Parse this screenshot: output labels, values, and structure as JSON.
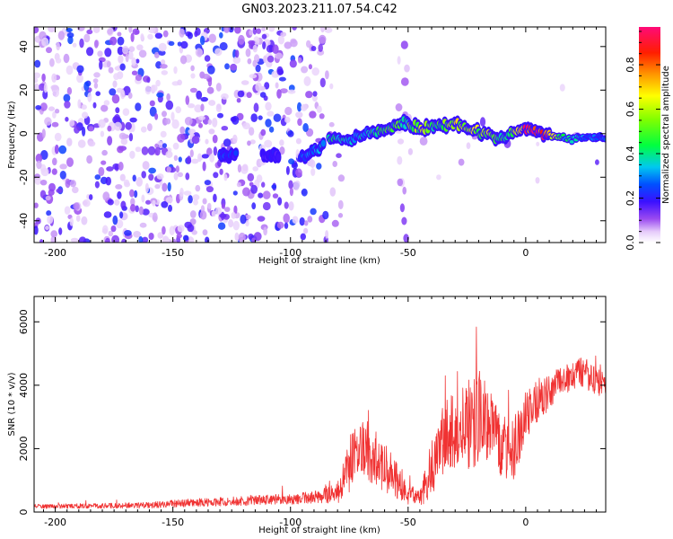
{
  "title": "GN03.2023.211.07.54.C42",
  "chart_data": [
    {
      "type": "heatmap",
      "xlabel": "Height of straight line (km)",
      "ylabel": "Frequency (Hz)",
      "xlim": [
        -209,
        34
      ],
      "ylim": [
        -50,
        49
      ],
      "xticks": [
        -200,
        -150,
        -100,
        -50,
        0
      ],
      "yticks": [
        -40,
        -20,
        0,
        20,
        40
      ],
      "colorbar": {
        "label": "Normalized spectral amplitude",
        "range": [
          0,
          0.97
        ],
        "ticks": [
          0.0,
          0.2,
          0.4,
          0.6,
          0.8
        ]
      },
      "ridge": [
        {
          "x": -128,
          "y": -10,
          "amp": 0.25
        },
        {
          "x": -100,
          "y": -10,
          "amp": 0.15
        },
        {
          "x": -92,
          "y": -10,
          "amp": 0.3
        },
        {
          "x": -82,
          "y": -2,
          "amp": 0.4
        },
        {
          "x": -75,
          "y": -3,
          "amp": 0.35
        },
        {
          "x": -68,
          "y": 0,
          "amp": 0.35
        },
        {
          "x": -60,
          "y": 1,
          "amp": 0.55
        },
        {
          "x": -52,
          "y": 5,
          "amp": 0.45
        },
        {
          "x": -44,
          "y": 2,
          "amp": 0.6
        },
        {
          "x": -38,
          "y": 4,
          "amp": 0.5
        },
        {
          "x": -30,
          "y": 4,
          "amp": 0.6
        },
        {
          "x": -22,
          "y": 1,
          "amp": 0.6
        },
        {
          "x": -15,
          "y": -1,
          "amp": 0.6
        },
        {
          "x": -10,
          "y": -3,
          "amp": 0.5
        },
        {
          "x": -5,
          "y": 1,
          "amp": 0.6
        },
        {
          "x": 0,
          "y": 2,
          "amp": 0.85
        },
        {
          "x": 8,
          "y": 0,
          "amp": 0.95
        },
        {
          "x": 15,
          "y": -2,
          "amp": 0.45
        },
        {
          "x": 25,
          "y": -2,
          "amp": 0.3
        },
        {
          "x": 34,
          "y": -2,
          "amp": 0.3
        }
      ]
    },
    {
      "type": "line",
      "xlabel": "Height of straight line (km)",
      "ylabel": "SNR (10 * v/v)",
      "xlim": [
        -209,
        34
      ],
      "ylim": [
        0,
        6800
      ],
      "xticks": [
        -200,
        -150,
        -100,
        -50,
        0
      ],
      "yticks": [
        0,
        2000,
        4000,
        6000
      ],
      "series": [
        {
          "name": "SNR",
          "color": "#f03232",
          "x": [
            -209,
            -200,
            -180,
            -160,
            -140,
            -120,
            -100,
            -90,
            -80,
            -75,
            -70,
            -65,
            -60,
            -55,
            -50,
            -45,
            -40,
            -35,
            -30,
            -25,
            -20,
            -15,
            -10,
            -5,
            0,
            5,
            10,
            15,
            20,
            25,
            30,
            34
          ],
          "y": [
            180,
            180,
            200,
            220,
            300,
            350,
            400,
            450,
            600,
            1500,
            2000,
            1800,
            1400,
            1000,
            500,
            500,
            1200,
            2300,
            2600,
            2700,
            3000,
            2700,
            2200,
            2000,
            3000,
            3500,
            3800,
            4100,
            4300,
            4400,
            4200,
            4000
          ],
          "amp": [
            70,
            70,
            80,
            100,
            130,
            150,
            180,
            200,
            350,
            900,
            1000,
            900,
            800,
            600,
            300,
            350,
            700,
            1100,
            1300,
            1400,
            1500,
            1200,
            1100,
            1000,
            800,
            700,
            600,
            500,
            500,
            500,
            500,
            500
          ]
        }
      ]
    }
  ]
}
